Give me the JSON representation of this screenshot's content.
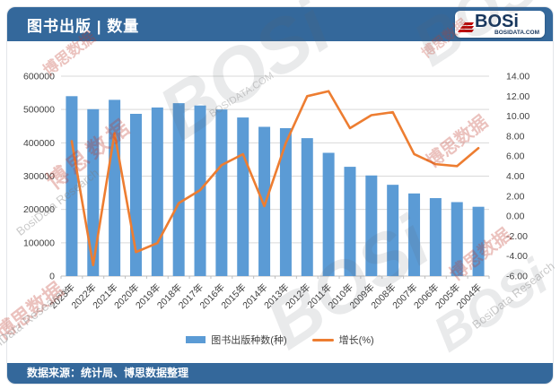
{
  "header": {
    "title": "图书出版 | 数量"
  },
  "logo": {
    "name": "BOSi",
    "domain": "BOSIDATA.COM"
  },
  "footer": {
    "source": "数据来源：统计局、博思数据整理"
  },
  "watermark": {
    "brand": "BOSi",
    "brand_sub": "BOSIDATA.COM",
    "cn": "博思数据",
    "en": "BosiData Research"
  },
  "chart_data": {
    "type": "bar",
    "title": "图书出版 | 数量",
    "categories": [
      "2023年",
      "2022年",
      "2021年",
      "2020年",
      "2019年",
      "2018年",
      "2017年",
      "2016年",
      "2015年",
      "2014年",
      "2013年",
      "2012年",
      "2011年",
      "2010年",
      "2009年",
      "2008年",
      "2007年",
      "2006年",
      "2005年",
      "2004年"
    ],
    "series": [
      {
        "name": "图书出版种数(种)",
        "type": "bar",
        "axis": "left",
        "color": "#5B9BD5",
        "values": [
          540000,
          501000,
          529000,
          487000,
          506000,
          519000,
          512000,
          500000,
          476000,
          448000,
          444000,
          414000,
          370000,
          328000,
          302000,
          274000,
          248000,
          234000,
          222000,
          208000
        ]
      },
      {
        "name": "增长(%)",
        "type": "line",
        "axis": "right",
        "color": "#ED7D31",
        "values": [
          7.5,
          -4.9,
          8.3,
          -3.6,
          -2.7,
          1.3,
          2.6,
          5.1,
          6.2,
          1.0,
          7.3,
          12.0,
          12.5,
          8.8,
          10.1,
          10.4,
          6.2,
          5.2,
          5.0,
          6.8
        ]
      }
    ],
    "left_axis": {
      "min": 0,
      "max": 600000,
      "step": 100000,
      "labels": [
        "600000",
        "500000",
        "400000",
        "300000",
        "200000",
        "100000",
        "0"
      ]
    },
    "right_axis": {
      "min": -6,
      "max": 14,
      "step": 2,
      "labels": [
        "14.00",
        "12.00",
        "10.00",
        "8.00",
        "6.00",
        "4.00",
        "2.00",
        "0.00",
        "-2.00",
        "-4.00",
        "-6.00"
      ]
    },
    "grid": true,
    "legend_position": "bottom",
    "x_label_rotation": -45
  }
}
